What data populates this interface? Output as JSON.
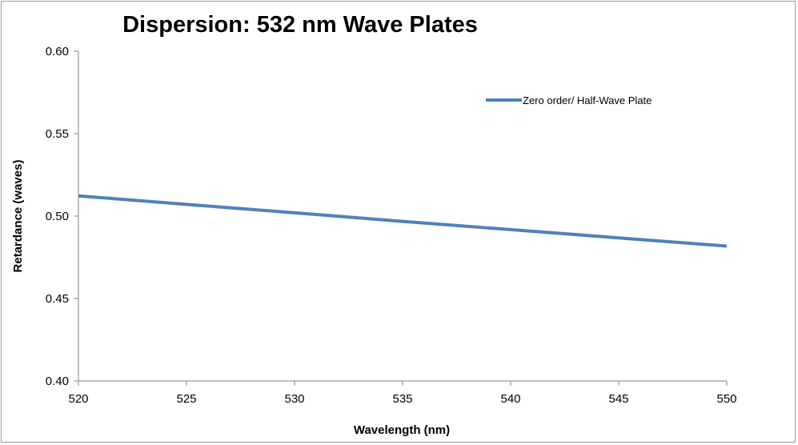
{
  "chart_data": {
    "type": "line",
    "title": "Dispersion: 532 nm Wave Plates",
    "xlabel": "Wavelength (nm)",
    "ylabel": "Retardance (waves)",
    "xlim": [
      520,
      550
    ],
    "ylim": [
      0.4,
      0.6
    ],
    "x_ticks": [
      "520",
      "525",
      "530",
      "535",
      "540",
      "545",
      "550"
    ],
    "y_ticks": [
      "0.60",
      "0.55",
      "0.50",
      "0.45",
      "0.40"
    ],
    "grid": false,
    "legend_position": "top-right",
    "series": [
      {
        "name": "Zero order/ Half-Wave Plate",
        "color": "#4f81bd",
        "x": [
          520,
          525,
          530,
          535,
          540,
          545,
          550
        ],
        "y": [
          0.5123,
          0.5071,
          0.502,
          0.4968,
          0.4918,
          0.4868,
          0.4818
        ]
      }
    ]
  }
}
